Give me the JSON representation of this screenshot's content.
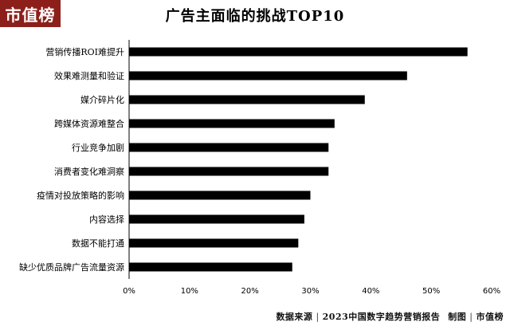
{
  "brand": {
    "logo_text": "市值榜"
  },
  "chart_data": {
    "type": "bar",
    "orientation": "horizontal",
    "title": "广告主面临的挑战TOP10",
    "categories": [
      "营销传播ROI难提升",
      "效果难测量和验证",
      "媒介碎片化",
      "跨媒体资源难整合",
      "行业竞争加剧",
      "消费者变化难洞察",
      "疫情对投放策略的影响",
      "内容选择",
      "数据不能打通",
      "缺少优质品牌广告流量资源"
    ],
    "values": [
      56,
      46,
      39,
      34,
      33,
      33,
      30,
      29,
      28,
      27
    ],
    "unit": "%",
    "xlim": [
      0,
      60
    ],
    "xticks": [
      "0%",
      "10%",
      "20%",
      "30%",
      "40%",
      "50%",
      "60%"
    ],
    "grid": false,
    "bar_color": "#000000"
  },
  "footer": {
    "source_label": "数据来源",
    "source_text": "2023中国数字趋势营销报告",
    "made_by_label": "制图",
    "made_by_text": "市值榜"
  }
}
